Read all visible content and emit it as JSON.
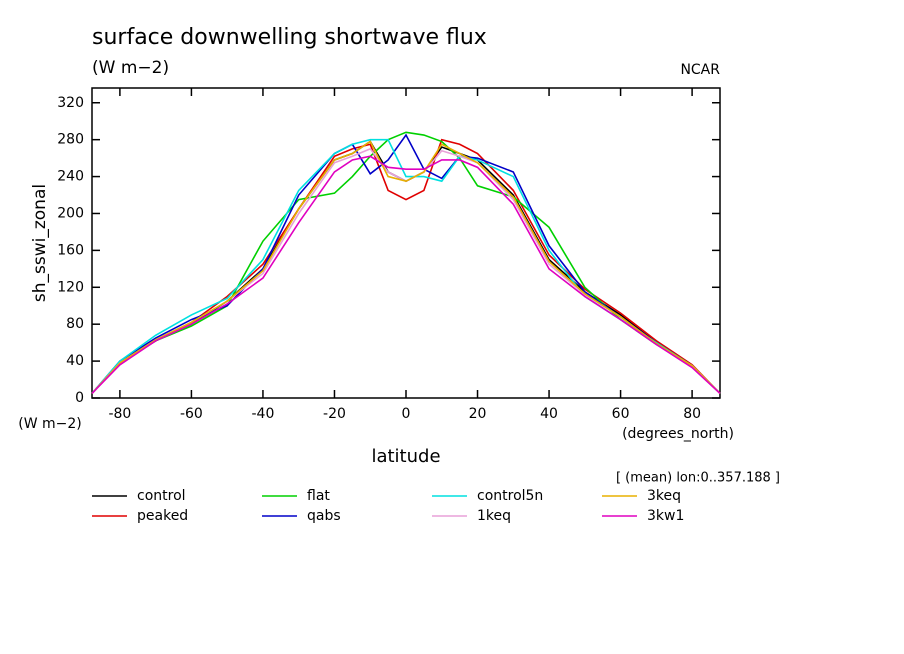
{
  "chart_data": {
    "type": "line",
    "title": "surface downwelling shortwave flux",
    "subtitle": "(W m−2)",
    "source": "NCAR",
    "y_label": "sh_sswi_zonal",
    "y_units": "(W m−2)",
    "x_label": "latitude",
    "x_units": "(degrees_north)",
    "note": "[ (mean) lon:0..357.188 ]",
    "x": [
      -87.8,
      -80,
      -70,
      -60,
      -50,
      -40,
      -30,
      -20,
      -15,
      -10,
      -5,
      0,
      5,
      10,
      15,
      20,
      30,
      40,
      50,
      60,
      70,
      80,
      87.8
    ],
    "series": [
      {
        "name": "control",
        "color": "#000000",
        "values": [
          5,
          38,
          62,
          80,
          105,
          140,
          205,
          258,
          265,
          278,
          245,
          235,
          245,
          272,
          265,
          258,
          220,
          150,
          115,
          90,
          60,
          35,
          5
        ]
      },
      {
        "name": "peaked",
        "color": "#e00000",
        "values": [
          5,
          38,
          62,
          82,
          110,
          145,
          205,
          262,
          270,
          275,
          225,
          215,
          225,
          280,
          275,
          265,
          225,
          155,
          118,
          92,
          62,
          36,
          5
        ]
      },
      {
        "name": "flat",
        "color": "#00d000",
        "values": [
          5,
          38,
          62,
          78,
          100,
          170,
          215,
          222,
          240,
          262,
          280,
          288,
          285,
          278,
          260,
          230,
          218,
          185,
          120,
          85,
          58,
          35,
          5
        ]
      },
      {
        "name": "qabs",
        "color": "#0000c8",
        "values": [
          5,
          40,
          65,
          85,
          100,
          140,
          220,
          265,
          275,
          243,
          258,
          285,
          248,
          238,
          262,
          260,
          245,
          165,
          115,
          88,
          60,
          35,
          5
        ]
      },
      {
        "name": "control5n",
        "color": "#00e0e0",
        "values": [
          5,
          40,
          68,
          90,
          108,
          150,
          225,
          265,
          275,
          280,
          280,
          240,
          240,
          235,
          262,
          258,
          240,
          160,
          110,
          85,
          60,
          35,
          5
        ]
      },
      {
        "name": "1keq",
        "color": "#e8a0d8",
        "values": [
          5,
          38,
          63,
          82,
          105,
          135,
          200,
          255,
          262,
          270,
          245,
          235,
          245,
          268,
          262,
          255,
          215,
          145,
          112,
          88,
          58,
          35,
          5
        ]
      },
      {
        "name": "3keq",
        "color": "#e8b000",
        "values": [
          5,
          38,
          63,
          82,
          105,
          138,
          205,
          258,
          265,
          278,
          240,
          235,
          245,
          275,
          265,
          255,
          218,
          148,
          113,
          88,
          59,
          35,
          5
        ]
      },
      {
        "name": "3kw1",
        "color": "#e000c0",
        "values": [
          5,
          36,
          62,
          80,
          102,
          130,
          190,
          245,
          258,
          262,
          250,
          248,
          248,
          258,
          258,
          250,
          210,
          140,
          110,
          85,
          58,
          33,
          5
        ]
      }
    ],
    "xlim": [
      -87.8,
      87.8
    ],
    "xticks": [
      -80,
      -60,
      -40,
      -20,
      0,
      20,
      40,
      60,
      80
    ],
    "ylim": [
      0,
      336
    ],
    "yticks": [
      0,
      40,
      80,
      120,
      160,
      200,
      240,
      280,
      320
    ]
  }
}
